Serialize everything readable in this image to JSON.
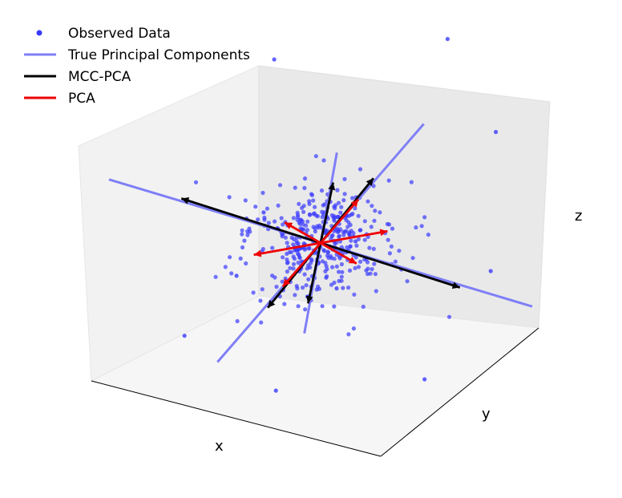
{
  "chart_data": {
    "type": "scatter",
    "projection": "3d",
    "xlabel": "x",
    "ylabel": "y",
    "zlabel": "z",
    "grid": false,
    "legend_placement": "top-left",
    "legend": [
      {
        "label": "Observed Data",
        "marker": "dot",
        "color": "#3b3bff"
      },
      {
        "label": "True Principal Components",
        "marker": "line",
        "color": "#7f7ff7"
      },
      {
        "label": "MCC-PCA",
        "marker": "line",
        "color": "#000000"
      },
      {
        "label": "PCA",
        "marker": "line",
        "color": "#ee0000"
      }
    ],
    "series": [
      {
        "name": "Observed Data",
        "kind": "points",
        "color": "#3b3bff",
        "count": 400,
        "center": [
          0,
          0,
          0
        ],
        "outliers": 12
      },
      {
        "name": "True Principal Components",
        "kind": "lines",
        "color": "#7f7ff7",
        "directions": [
          [
            1.0,
            0.0,
            0.0
          ],
          [
            0.0,
            1.0,
            0.0
          ],
          [
            0.0,
            0.0,
            1.0
          ]
        ]
      },
      {
        "name": "MCC-PCA",
        "kind": "arrows",
        "color": "#000000",
        "directions": [
          [
            0.98,
            0.05,
            0.03
          ],
          [
            0.04,
            0.98,
            0.05
          ],
          [
            0.03,
            0.04,
            0.99
          ]
        ]
      },
      {
        "name": "PCA",
        "kind": "arrows",
        "color": "#ee0000",
        "directions": [
          [
            0.62,
            0.45,
            0.35
          ],
          [
            -0.5,
            0.7,
            0.2
          ],
          [
            0.3,
            -0.25,
            0.9
          ]
        ]
      }
    ]
  }
}
